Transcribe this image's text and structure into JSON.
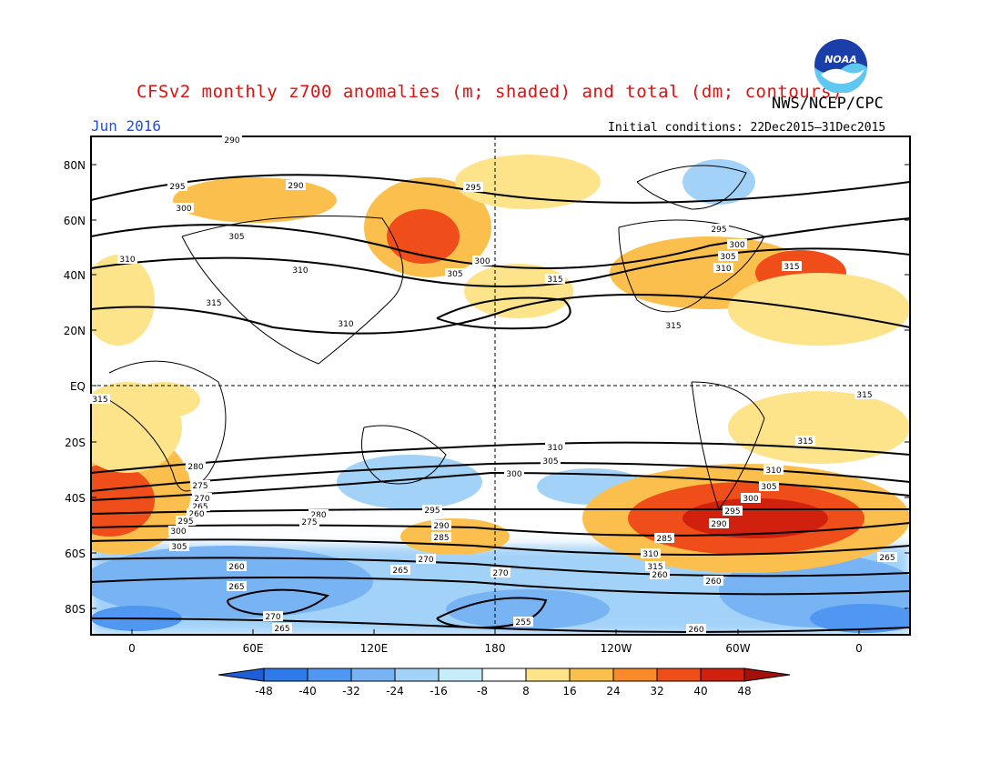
{
  "header": {
    "title": "CFSv2 monthly z700 anomalies (m; shaded) and total (dm; contours)",
    "agency": "NWS/NCEP/CPC",
    "month": "Jun 2016",
    "initial_conditions": "Initial conditions: 22Dec2015–31Dec2015",
    "logo_text": "NOAA"
  },
  "map": {
    "lat_labels": [
      "80N",
      "60N",
      "40N",
      "20N",
      "EQ",
      "20S",
      "40S",
      "60S",
      "80S"
    ],
    "lon_labels": [
      "0",
      "60E",
      "120E",
      "180",
      "120W",
      "60W",
      "0"
    ],
    "colorbar": {
      "ticks": [
        "-48",
        "-40",
        "-32",
        "-24",
        "-16",
        "-8",
        "8",
        "16",
        "24",
        "32",
        "40",
        "48"
      ],
      "colors": [
        "#1e5fd8",
        "#2f7ae8",
        "#4f97f0",
        "#78b4f4",
        "#a3d2f8",
        "#c9ecfb",
        "#ffffff",
        "#fde38a",
        "#fbbf4d",
        "#f88a2a",
        "#ef4d19",
        "#d0200e",
        "#a50f0a"
      ]
    },
    "contour_labels": [
      "290",
      "295",
      "290",
      "300",
      "305",
      "310",
      "310",
      "315",
      "310",
      "295",
      "300",
      "305",
      "315",
      "295",
      "300",
      "305",
      "310",
      "315",
      "315",
      "315",
      "315",
      "315",
      "310",
      "305",
      "300",
      "295",
      "290",
      "285",
      "310",
      "305",
      "300",
      "295",
      "290",
      "285",
      "280",
      "275",
      "270",
      "265",
      "260",
      "265",
      "270",
      "280",
      "275",
      "270",
      "265",
      "260",
      "295",
      "300",
      "305",
      "310",
      "315",
      "260",
      "260",
      "265",
      "270",
      "255",
      "260",
      "265"
    ]
  }
}
